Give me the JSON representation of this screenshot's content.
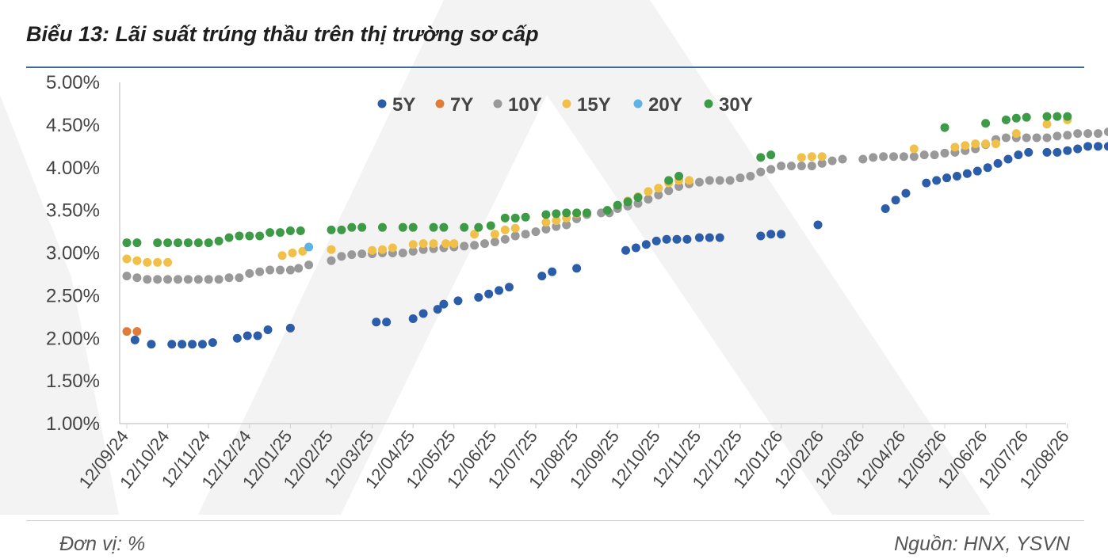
{
  "title": "Biểu 13: Lãi suất trúng thầu trên thị trường sơ cấp",
  "footer": {
    "unit": "Đơn vị: %",
    "source": "Nguồn: HNX, YSVN"
  },
  "chart_data": {
    "type": "scatter",
    "x_labels": [
      "12/09/24",
      "12/10/24",
      "12/11/24",
      "12/12/24",
      "12/01/25",
      "12/02/25",
      "12/03/25",
      "12/04/25",
      "12/05/25",
      "12/06/25",
      "12/07/25",
      "12/08/25",
      "12/09/25",
      "12/10/25",
      "12/11/25",
      "12/12/25",
      "12/01/26",
      "12/02/26",
      "12/03/26",
      "12/04/26",
      "12/05/26",
      "12/06/26",
      "12/07/26",
      "12/08/26"
    ],
    "y_ticks": [
      "1.00%",
      "1.50%",
      "2.00%",
      "2.50%",
      "3.00%",
      "3.50%",
      "4.00%",
      "4.50%",
      "5.00%"
    ],
    "ylim": [
      1.0,
      5.0
    ],
    "grid": false,
    "legend_position": "top",
    "series": [
      {
        "name": "5Y",
        "color": "#2b5da8",
        "points": [
          [
            0.2,
            1.98
          ],
          [
            0.6,
            1.93
          ],
          [
            1.1,
            1.93
          ],
          [
            1.35,
            1.93
          ],
          [
            1.6,
            1.93
          ],
          [
            1.85,
            1.93
          ],
          [
            2.1,
            1.95
          ],
          [
            2.7,
            2.0
          ],
          [
            2.95,
            2.03
          ],
          [
            3.2,
            2.03
          ],
          [
            3.45,
            2.1
          ],
          [
            4.0,
            2.12
          ],
          [
            6.1,
            2.19
          ],
          [
            6.35,
            2.19
          ],
          [
            7.0,
            2.23
          ],
          [
            7.25,
            2.29
          ],
          [
            7.6,
            2.34
          ],
          [
            7.75,
            2.4
          ],
          [
            8.1,
            2.44
          ],
          [
            8.6,
            2.48
          ],
          [
            8.85,
            2.52
          ],
          [
            9.1,
            2.56
          ],
          [
            9.35,
            2.6
          ],
          [
            10.15,
            2.73
          ],
          [
            10.4,
            2.78
          ],
          [
            11.0,
            2.82
          ],
          [
            12.2,
            3.03
          ],
          [
            12.45,
            3.06
          ],
          [
            12.7,
            3.1
          ],
          [
            12.95,
            3.14
          ],
          [
            13.2,
            3.16
          ],
          [
            13.45,
            3.16
          ],
          [
            13.7,
            3.16
          ],
          [
            14.0,
            3.18
          ],
          [
            14.25,
            3.18
          ],
          [
            14.5,
            3.18
          ],
          [
            15.5,
            3.2
          ],
          [
            15.75,
            3.22
          ],
          [
            16.0,
            3.22
          ],
          [
            16.9,
            3.33
          ],
          [
            18.55,
            3.52
          ],
          [
            18.8,
            3.62
          ],
          [
            19.05,
            3.7
          ],
          [
            19.55,
            3.82
          ],
          [
            19.8,
            3.85
          ],
          [
            20.05,
            3.88
          ],
          [
            20.3,
            3.9
          ],
          [
            20.55,
            3.93
          ],
          [
            20.8,
            3.96
          ],
          [
            21.05,
            4.0
          ],
          [
            21.3,
            4.05
          ],
          [
            21.55,
            4.1
          ],
          [
            21.8,
            4.15
          ],
          [
            22.05,
            4.18
          ],
          [
            22.5,
            4.18
          ],
          [
            22.75,
            4.18
          ],
          [
            23.0,
            4.2
          ],
          [
            23.25,
            4.22
          ],
          [
            23.5,
            4.25
          ],
          [
            23.75,
            4.25
          ],
          [
            24.0,
            4.25
          ],
          [
            24.3,
            4.25
          ],
          [
            24.8,
            4.27
          ]
        ]
      },
      {
        "name": "7Y",
        "color": "#e07b3a",
        "points": [
          [
            0.0,
            2.08
          ],
          [
            0.25,
            2.08
          ]
        ]
      },
      {
        "name": "10Y",
        "color": "#999999",
        "points": [
          [
            0.0,
            2.73
          ],
          [
            0.25,
            2.71
          ],
          [
            0.5,
            2.69
          ],
          [
            0.75,
            2.69
          ],
          [
            1.0,
            2.69
          ],
          [
            1.25,
            2.69
          ],
          [
            1.5,
            2.69
          ],
          [
            1.75,
            2.69
          ],
          [
            2.0,
            2.69
          ],
          [
            2.25,
            2.69
          ],
          [
            2.5,
            2.71
          ],
          [
            2.75,
            2.71
          ],
          [
            3.0,
            2.76
          ],
          [
            3.25,
            2.78
          ],
          [
            3.5,
            2.8
          ],
          [
            3.75,
            2.8
          ],
          [
            4.0,
            2.8
          ],
          [
            4.2,
            2.82
          ],
          [
            4.45,
            2.86
          ],
          [
            5.0,
            2.91
          ],
          [
            5.25,
            2.96
          ],
          [
            5.5,
            2.98
          ],
          [
            5.75,
            2.99
          ],
          [
            6.0,
            2.99
          ],
          [
            6.25,
            3.0
          ],
          [
            6.5,
            3.0
          ],
          [
            6.75,
            3.0
          ],
          [
            7.0,
            3.02
          ],
          [
            7.25,
            3.04
          ],
          [
            7.5,
            3.05
          ],
          [
            7.75,
            3.06
          ],
          [
            8.0,
            3.07
          ],
          [
            8.25,
            3.08
          ],
          [
            8.5,
            3.09
          ],
          [
            8.75,
            3.11
          ],
          [
            9.0,
            3.13
          ],
          [
            9.25,
            3.16
          ],
          [
            9.5,
            3.2
          ],
          [
            9.75,
            3.22
          ],
          [
            10.0,
            3.25
          ],
          [
            10.25,
            3.28
          ],
          [
            10.5,
            3.31
          ],
          [
            10.75,
            3.33
          ],
          [
            11.0,
            3.4
          ],
          [
            11.25,
            3.45
          ],
          [
            11.6,
            3.47
          ],
          [
            11.8,
            3.47
          ],
          [
            12.0,
            3.52
          ],
          [
            12.25,
            3.55
          ],
          [
            12.5,
            3.58
          ],
          [
            12.75,
            3.63
          ],
          [
            13.0,
            3.68
          ],
          [
            13.25,
            3.73
          ],
          [
            13.5,
            3.78
          ],
          [
            13.75,
            3.81
          ],
          [
            14.0,
            3.83
          ],
          [
            14.25,
            3.85
          ],
          [
            14.5,
            3.85
          ],
          [
            14.75,
            3.85
          ],
          [
            15.0,
            3.88
          ],
          [
            15.25,
            3.9
          ],
          [
            15.5,
            3.95
          ],
          [
            15.75,
            3.98
          ],
          [
            16.0,
            4.02
          ],
          [
            16.25,
            4.02
          ],
          [
            16.5,
            4.02
          ],
          [
            16.75,
            4.02
          ],
          [
            17.0,
            4.05
          ],
          [
            17.25,
            4.08
          ],
          [
            17.5,
            4.1
          ],
          [
            18.0,
            4.1
          ],
          [
            18.25,
            4.12
          ],
          [
            18.5,
            4.13
          ],
          [
            18.75,
            4.13
          ],
          [
            19.0,
            4.13
          ],
          [
            19.25,
            4.13
          ],
          [
            19.5,
            4.15
          ],
          [
            19.75,
            4.15
          ],
          [
            20.0,
            4.17
          ],
          [
            20.25,
            4.18
          ],
          [
            20.5,
            4.2
          ],
          [
            20.75,
            4.22
          ],
          [
            21.0,
            4.27
          ],
          [
            21.25,
            4.33
          ],
          [
            21.5,
            4.35
          ],
          [
            21.75,
            4.35
          ],
          [
            22.0,
            4.35
          ],
          [
            22.25,
            4.35
          ],
          [
            22.5,
            4.35
          ],
          [
            22.75,
            4.37
          ],
          [
            23.0,
            4.38
          ],
          [
            23.25,
            4.4
          ],
          [
            23.5,
            4.4
          ],
          [
            23.75,
            4.4
          ],
          [
            24.0,
            4.42
          ],
          [
            24.25,
            4.44
          ],
          [
            24.5,
            4.44
          ],
          [
            24.75,
            4.45
          ]
        ]
      },
      {
        "name": "15Y",
        "color": "#f0c04a",
        "points": [
          [
            0.0,
            2.93
          ],
          [
            0.25,
            2.91
          ],
          [
            0.5,
            2.89
          ],
          [
            0.75,
            2.89
          ],
          [
            1.0,
            2.89
          ],
          [
            3.8,
            2.97
          ],
          [
            4.05,
            3.0
          ],
          [
            4.3,
            3.02
          ],
          [
            5.0,
            3.04
          ],
          [
            6.0,
            3.03
          ],
          [
            6.25,
            3.04
          ],
          [
            6.5,
            3.06
          ],
          [
            7.0,
            3.1
          ],
          [
            7.25,
            3.11
          ],
          [
            7.5,
            3.11
          ],
          [
            7.8,
            3.11
          ],
          [
            8.0,
            3.11
          ],
          [
            8.5,
            3.22
          ],
          [
            9.0,
            3.22
          ],
          [
            9.25,
            3.27
          ],
          [
            9.5,
            3.29
          ],
          [
            10.25,
            3.36
          ],
          [
            10.5,
            3.38
          ],
          [
            10.75,
            3.41
          ],
          [
            11.0,
            3.46
          ],
          [
            11.25,
            3.47
          ],
          [
            12.0,
            3.56
          ],
          [
            12.25,
            3.61
          ],
          [
            12.5,
            3.66
          ],
          [
            12.75,
            3.72
          ],
          [
            13.0,
            3.76
          ],
          [
            13.25,
            3.82
          ],
          [
            13.5,
            3.85
          ],
          [
            13.75,
            3.85
          ],
          [
            16.5,
            4.12
          ],
          [
            16.75,
            4.13
          ],
          [
            17.0,
            4.13
          ],
          [
            19.25,
            4.22
          ],
          [
            20.25,
            4.24
          ],
          [
            20.5,
            4.26
          ],
          [
            20.75,
            4.28
          ],
          [
            21.0,
            4.28
          ],
          [
            21.25,
            4.28
          ],
          [
            21.75,
            4.4
          ],
          [
            22.5,
            4.51
          ],
          [
            23.0,
            4.56
          ],
          [
            24.5,
            4.57
          ]
        ]
      },
      {
        "name": "20Y",
        "color": "#5fb2e4",
        "points": [
          [
            4.45,
            3.07
          ]
        ]
      },
      {
        "name": "30Y",
        "color": "#3d9a46",
        "points": [
          [
            0.0,
            3.12
          ],
          [
            0.25,
            3.12
          ],
          [
            0.75,
            3.12
          ],
          [
            1.0,
            3.12
          ],
          [
            1.25,
            3.12
          ],
          [
            1.5,
            3.12
          ],
          [
            1.75,
            3.12
          ],
          [
            2.0,
            3.12
          ],
          [
            2.25,
            3.14
          ],
          [
            2.5,
            3.18
          ],
          [
            2.75,
            3.2
          ],
          [
            3.0,
            3.2
          ],
          [
            3.25,
            3.2
          ],
          [
            3.5,
            3.24
          ],
          [
            3.75,
            3.24
          ],
          [
            4.0,
            3.26
          ],
          [
            4.25,
            3.26
          ],
          [
            5.0,
            3.27
          ],
          [
            5.25,
            3.27
          ],
          [
            5.5,
            3.3
          ],
          [
            5.75,
            3.3
          ],
          [
            6.25,
            3.3
          ],
          [
            6.75,
            3.3
          ],
          [
            7.0,
            3.3
          ],
          [
            7.5,
            3.3
          ],
          [
            7.75,
            3.3
          ],
          [
            8.25,
            3.3
          ],
          [
            8.6,
            3.3
          ],
          [
            8.9,
            3.32
          ],
          [
            9.25,
            3.41
          ],
          [
            9.5,
            3.41
          ],
          [
            9.75,
            3.42
          ],
          [
            10.25,
            3.45
          ],
          [
            10.5,
            3.46
          ],
          [
            10.75,
            3.47
          ],
          [
            11.0,
            3.47
          ],
          [
            11.25,
            3.47
          ],
          [
            11.75,
            3.5
          ],
          [
            12.0,
            3.56
          ],
          [
            12.25,
            3.6
          ],
          [
            12.5,
            3.65
          ],
          [
            13.25,
            3.85
          ],
          [
            13.5,
            3.9
          ],
          [
            15.5,
            4.12
          ],
          [
            15.75,
            4.15
          ],
          [
            20.0,
            4.47
          ],
          [
            21.0,
            4.52
          ],
          [
            21.5,
            4.56
          ],
          [
            21.75,
            4.58
          ],
          [
            22.0,
            4.59
          ],
          [
            22.5,
            4.6
          ],
          [
            22.75,
            4.6
          ],
          [
            23.0,
            4.6
          ],
          [
            24.5,
            4.62
          ],
          [
            24.75,
            4.62
          ]
        ]
      }
    ]
  }
}
